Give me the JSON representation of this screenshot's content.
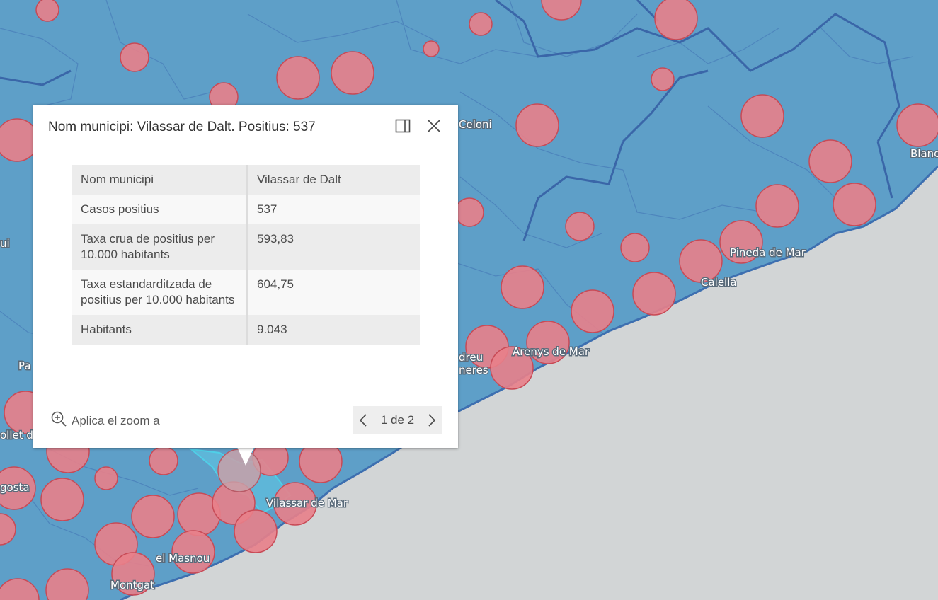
{
  "map": {
    "labels": {
      "celoni": "Celoni",
      "blanes": "Blane",
      "pineda": "Pineda de Mar",
      "calella": "Calella",
      "arenys": "Arenys de Mar",
      "andreu": "dreu",
      "lleres": "neres",
      "vilassar_mar": "Vilassar de Mar",
      "masnou": "el Masnou",
      "montgat": "Montgat",
      "badalona": "gosta",
      "mollet": "ollet de",
      "pa": "Pa",
      "ui": "ui"
    },
    "colors": {
      "land": "#5e9fc8",
      "sea": "#d2d5d6",
      "circle_fill": "#e8808a",
      "circle_stroke": "#c84a56",
      "boundary": "#3d6fb0",
      "selected": "#4fd0e8"
    }
  },
  "popup": {
    "title": "Nom municipi: Vilassar de Dalt. Positius: 537",
    "fields": [
      {
        "label": "Nom municipi",
        "value": "Vilassar de Dalt"
      },
      {
        "label": "Casos positius",
        "value": "537"
      },
      {
        "label": "Taxa crua de positius per 10.000 habitants",
        "value": "593,83"
      },
      {
        "label": "Taxa estandarditzada de positius per 10.000 habitants",
        "value": "604,75"
      },
      {
        "label": "Habitants",
        "value": "9.043"
      }
    ],
    "zoom_label": "Aplica el zoom a",
    "pager": "1 de 2",
    "icons": {
      "dock": "dock-icon",
      "close": "close-icon",
      "zoom": "zoom-in-icon",
      "prev": "chevron-left-icon",
      "next": "chevron-right-icon"
    }
  }
}
